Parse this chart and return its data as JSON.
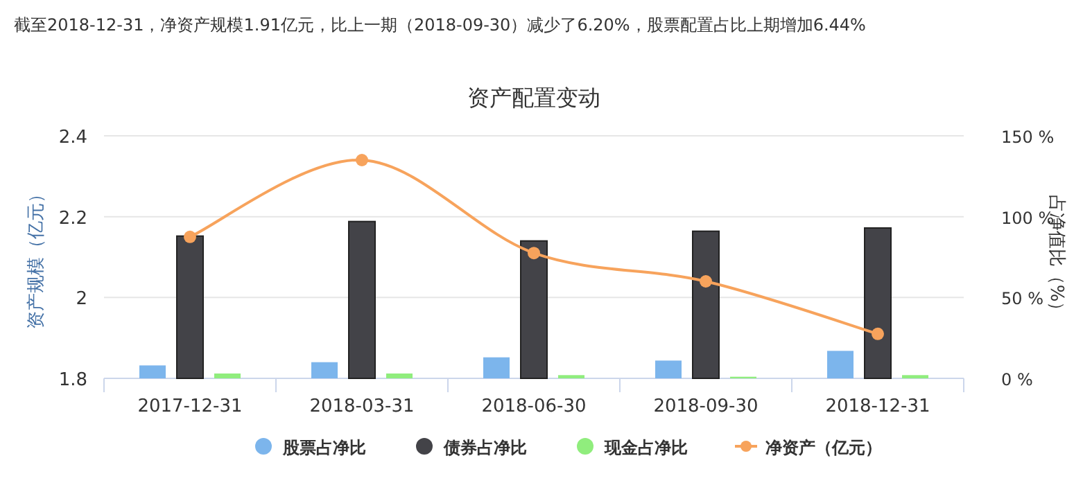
{
  "chart_data": {
    "type": "bar",
    "title": "资产配置变动",
    "annotations": [
      "截至2018-12-31，净资产规模1.91亿元，比上一期（2018-09-30）减少了6.20%，股票配置占比上期增加6.44%"
    ],
    "categories": [
      "2017-12-31",
      "2018-03-31",
      "2018-06-30",
      "2018-09-30",
      "2018-12-31"
    ],
    "series": [
      {
        "name": "股票占净比",
        "color": "#7cb5ec",
        "axis": "y2",
        "values": [
          8,
          10,
          13,
          11,
          17
        ]
      },
      {
        "name": "债券占净比",
        "color": "#434348",
        "axis": "y2",
        "values": [
          88,
          97,
          85,
          91,
          93
        ]
      },
      {
        "name": "现金占净比",
        "color": "#90ed7d",
        "axis": "y2",
        "values": [
          3,
          3,
          2,
          1,
          2
        ]
      },
      {
        "name": "净资产（亿元）",
        "color": "#f7a35c",
        "type": "line",
        "axis": "y",
        "marker": "circle",
        "values": [
          2.15,
          2.34,
          2.11,
          2.04,
          1.91
        ]
      }
    ],
    "ylabel": "资产规模（亿元）",
    "y2label": "占净值比（%）",
    "ylim": [
      1.8,
      2.4
    ],
    "yticks": [
      1.8,
      2,
      2.2,
      2.4
    ],
    "y2lim": [
      0,
      150
    ],
    "y2ticks": [
      {
        "value": 0,
        "label": "0 %"
      },
      {
        "value": 50,
        "label": "50 %"
      },
      {
        "value": 100,
        "label": "100 %"
      },
      {
        "value": 150,
        "label": "150 %"
      }
    ],
    "grid": "y",
    "legend": "bottom"
  }
}
